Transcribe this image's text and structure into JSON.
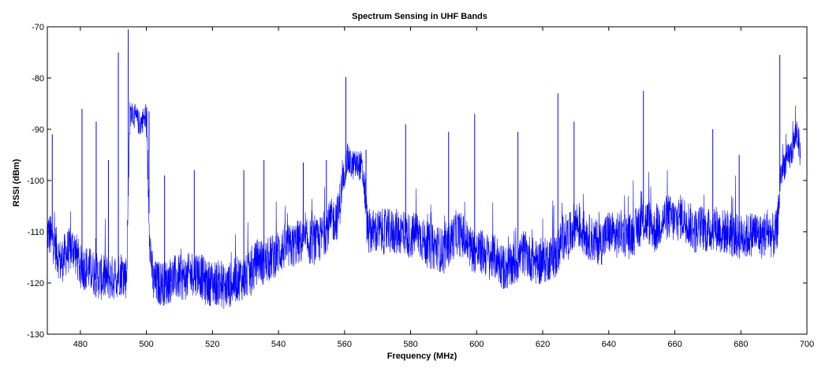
{
  "chart_data": {
    "type": "line",
    "title": "Spectrum Sensing in UHF Bands",
    "xlabel": "Frequency (MHz)",
    "ylabel": "RSSI (dBm)",
    "xlim": [
      470,
      700
    ],
    "ylim": [
      -130,
      -70
    ],
    "xticks": [
      "480",
      "500",
      "520",
      "540",
      "560",
      "580",
      "600",
      "620",
      "640",
      "660",
      "680",
      "700"
    ],
    "yticks": [
      "-70",
      "-80",
      "-90",
      "-100",
      "-110",
      "-120",
      "-130"
    ],
    "grid": false,
    "line_color": "#0000ff",
    "series": [
      {
        "x": [
          470,
          472,
          474,
          476,
          478,
          480,
          482,
          484,
          486,
          488,
          490,
          492,
          493,
          494,
          495,
          496,
          498,
          499,
          500,
          501,
          502,
          504,
          506,
          508,
          510,
          512,
          514,
          516,
          518,
          520,
          522,
          524,
          526,
          528,
          530,
          532,
          534,
          535,
          536,
          538,
          540,
          542,
          544,
          546,
          548,
          550,
          552,
          554,
          556,
          558,
          560,
          561,
          562,
          564,
          565,
          566,
          567,
          568,
          570,
          572,
          574,
          576,
          578,
          580,
          582,
          584,
          586,
          588,
          590,
          592,
          594,
          596,
          598,
          600,
          602,
          604,
          606,
          608,
          610,
          612,
          614,
          616,
          618,
          620,
          622,
          624,
          626,
          628,
          630,
          632,
          634,
          636,
          638,
          640,
          642,
          644,
          646,
          648,
          650,
          652,
          654,
          656,
          658,
          660,
          662,
          664,
          666,
          668,
          670,
          672,
          674,
          676,
          678,
          680,
          682,
          684,
          686,
          688,
          690,
          691,
          692,
          693,
          694,
          695,
          696,
          697,
          698
        ],
        "values": [
          -110,
          -112,
          -116,
          -114,
          -113,
          -117,
          -117,
          -118,
          -119,
          -119,
          -119,
          -118,
          -118,
          -119,
          -87,
          -87,
          -89,
          -88,
          -88,
          -111,
          -120,
          -120,
          -120,
          -119,
          -119,
          -119,
          -118,
          -118,
          -120,
          -120,
          -120,
          -121,
          -120,
          -119,
          -119,
          -118,
          -115,
          -116,
          -116,
          -115,
          -114,
          -113,
          -113,
          -112,
          -112,
          -112,
          -112,
          -110,
          -108,
          -107,
          -98,
          -96,
          -97,
          -97,
          -97,
          -101,
          -110,
          -110,
          -110,
          -110,
          -110,
          -110,
          -110,
          -111,
          -110,
          -112,
          -113,
          -113,
          -114,
          -112,
          -110,
          -111,
          -113,
          -114,
          -114,
          -115,
          -115,
          -117,
          -117,
          -116,
          -114,
          -115,
          -116,
          -116,
          -115,
          -115,
          -111,
          -111,
          -108,
          -110,
          -111,
          -112,
          -112,
          -110,
          -111,
          -110,
          -111,
          -110,
          -108,
          -108,
          -110,
          -108,
          -107,
          -108,
          -107,
          -108,
          -110,
          -109,
          -110,
          -109,
          -110,
          -110,
          -111,
          -111,
          -111,
          -110,
          -111,
          -110,
          -111,
          -110,
          -99,
          -97,
          -96,
          -95,
          -93,
          -90,
          -95
        ],
        "peaks": [
          {
            "x": 471.5,
            "y": -91
          },
          {
            "x": 480.5,
            "y": -86
          },
          {
            "x": 484.8,
            "y": -88.5
          },
          {
            "x": 488.5,
            "y": -96
          },
          {
            "x": 491.5,
            "y": -75
          },
          {
            "x": 494.5,
            "y": -70.5
          },
          {
            "x": 500.8,
            "y": -86.5
          },
          {
            "x": 505.5,
            "y": -99
          },
          {
            "x": 514.5,
            "y": -98
          },
          {
            "x": 529.5,
            "y": -98
          },
          {
            "x": 535.6,
            "y": -96
          },
          {
            "x": 547.5,
            "y": -96.5
          },
          {
            "x": 554.5,
            "y": -96
          },
          {
            "x": 560.4,
            "y": -79.8
          },
          {
            "x": 566.5,
            "y": -94
          },
          {
            "x": 578.5,
            "y": -89
          },
          {
            "x": 591.5,
            "y": -90.5
          },
          {
            "x": 599.4,
            "y": -87
          },
          {
            "x": 612.5,
            "y": -90.5
          },
          {
            "x": 624.6,
            "y": -83
          },
          {
            "x": 629.5,
            "y": -88.5
          },
          {
            "x": 650.5,
            "y": -82.5
          },
          {
            "x": 671.5,
            "y": -90
          },
          {
            "x": 679.5,
            "y": -95
          },
          {
            "x": 691.8,
            "y": -75.5
          }
        ]
      }
    ]
  }
}
